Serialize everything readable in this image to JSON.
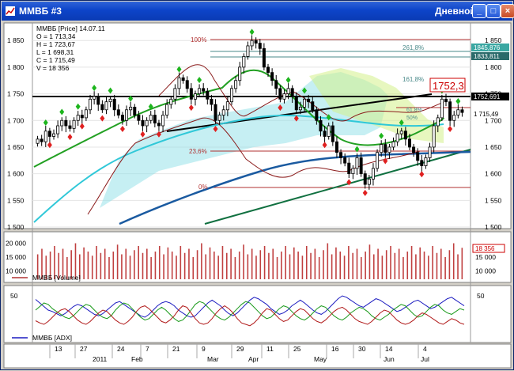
{
  "window": {
    "title": "ММВБ #3",
    "timeframe": "Дневной",
    "controls": [
      "minimize",
      "maximize",
      "close"
    ]
  },
  "info_box": {
    "lines": [
      "ММВБ [Price] 14.07.11",
      "O = 1 713,34",
      "H = 1 723,67",
      "L = 1 698,31",
      "C = 1 715,49",
      "V = 18 356"
    ]
  },
  "fib_labels": [
    "100%",
    "261,8%",
    "161,8%",
    "23,6%",
    "0%",
    "61,8%",
    "50%"
  ],
  "price_callout": "1752,3",
  "right_value_labels": [
    "1845,876",
    "1833,811",
    "1752,691",
    "1 715,49"
  ],
  "volume_right_label": "18 356",
  "volume_legend": "ММВБ [Volume]",
  "adx_legend": "ММВБ [ADX]",
  "date_axis": {
    "day_ticks": [
      "13",
      "27",
      "24",
      "7",
      "21",
      "9",
      "29",
      "11",
      "25",
      "16",
      "30",
      "14",
      "4"
    ],
    "months": [
      "2011",
      "Feb",
      "Mar",
      "Apr",
      "May",
      "Jun",
      "Jul"
    ]
  },
  "chart_data": [
    {
      "type": "candlestick",
      "ylim": [
        1500,
        1880
      ],
      "y_ticks": [
        "1 850",
        "1 800",
        "1 750",
        "1 700",
        "1 650",
        "1 600",
        "1 550",
        "1 500"
      ],
      "close": [
        1665,
        1660,
        1680,
        1670,
        1675,
        1690,
        1700,
        1690,
        1685,
        1700,
        1710,
        1705,
        1720,
        1740,
        1745,
        1730,
        1720,
        1735,
        1740,
        1720,
        1710,
        1700,
        1720,
        1725,
        1710,
        1700,
        1690,
        1700,
        1710,
        1695,
        1690,
        1710,
        1730,
        1740,
        1760,
        1780,
        1775,
        1760,
        1740,
        1750,
        1760,
        1755,
        1740,
        1730,
        1700,
        1710,
        1720,
        1735,
        1760,
        1775,
        1800,
        1820,
        1840,
        1850,
        1845,
        1835,
        1800,
        1790,
        1775,
        1760,
        1740,
        1750,
        1760,
        1745,
        1720,
        1725,
        1740,
        1735,
        1720,
        1700,
        1680,
        1670,
        1690,
        1660,
        1640,
        1630,
        1620,
        1600,
        1610,
        1630,
        1600,
        1580,
        1590,
        1610,
        1640,
        1655,
        1640,
        1650,
        1660,
        1675,
        1680,
        1665,
        1650,
        1640,
        1625,
        1615,
        1630,
        1650,
        1690,
        1705,
        1740,
        1735,
        1700,
        1710,
        1720,
        1715
      ]
    },
    {
      "type": "bar",
      "title": "ММВБ [Volume]",
      "y_ticks": [
        "20 000",
        "15 000",
        "10 000"
      ],
      "ylim": [
        7000,
        23000
      ],
      "values": [
        16000,
        18000,
        15500,
        17000,
        19000,
        16500,
        18000,
        15000,
        17500,
        20000,
        16000,
        18500,
        17000,
        15500,
        19000,
        16500,
        18000,
        15000,
        17000,
        19500,
        16000,
        18000,
        15500,
        17500,
        19000,
        16500,
        18000,
        15000,
        17000,
        19000,
        16000,
        18500,
        17000,
        15500,
        19000,
        16500,
        18000,
        15000,
        17500,
        20000,
        16000,
        18500,
        17000,
        15500,
        19000,
        16500,
        18000,
        15000,
        17000,
        19500,
        16000,
        18000,
        15500,
        17500,
        19000,
        16500,
        18000,
        15000,
        17000,
        19000,
        16000,
        18500,
        17000,
        15500,
        19000,
        16500,
        18000,
        15000,
        17500,
        20000,
        16000,
        18500,
        17000,
        15500,
        19000,
        16500,
        18000,
        15000,
        17000,
        19500,
        16000,
        18000,
        15500,
        17500,
        19000,
        16500,
        18000,
        15000,
        17000,
        19000,
        16000,
        18500,
        17000,
        15500,
        19000,
        16500,
        18000,
        15000,
        17500,
        20000,
        16000,
        18356
      ]
    },
    {
      "type": "line",
      "title": "ММВБ [ADX]",
      "y_ticks": [
        "50"
      ],
      "ylim": [
        0,
        60
      ],
      "series": [
        {
          "color": "#1c1cc0",
          "values": [
            45,
            40,
            35,
            30,
            28,
            25,
            22,
            25,
            30,
            35,
            38,
            36,
            32,
            28,
            24,
            22,
            25,
            30,
            35,
            40,
            42,
            38,
            34,
            30,
            26,
            22,
            20,
            24,
            30,
            36,
            40,
            42,
            40,
            36,
            30,
            26,
            22,
            20,
            22,
            28,
            34,
            40,
            44,
            40,
            36,
            30,
            25,
            22,
            26,
            32,
            38,
            44,
            48,
            46,
            42,
            38,
            32,
            28,
            24,
            26,
            30,
            36,
            40,
            44,
            40,
            35,
            30,
            26,
            24,
            28,
            34,
            40,
            46,
            50,
            48,
            44,
            40,
            36,
            34,
            38,
            42,
            46,
            44,
            40,
            36,
            32,
            28,
            30,
            34,
            38,
            42,
            44,
            40,
            36,
            32,
            34,
            38,
            42,
            46,
            48,
            44,
            40,
            36
          ]
        },
        {
          "color": "#1a9a1a",
          "values": [
            30,
            35,
            40,
            38,
            32,
            28,
            24,
            20,
            18,
            22,
            28,
            34,
            38,
            36,
            30,
            24,
            20,
            18,
            22,
            30,
            36,
            40,
            38,
            32,
            26,
            20,
            16,
            18,
            24,
            30,
            34,
            30,
            24,
            18,
            14,
            16,
            22,
            30,
            38,
            42,
            40,
            34,
            28,
            22,
            18,
            16,
            20,
            26,
            32,
            38,
            42,
            40,
            34,
            28,
            22,
            18,
            20,
            26,
            32,
            36,
            34,
            28,
            22,
            18,
            16,
            20,
            26,
            32,
            36,
            34,
            28,
            22,
            18,
            16,
            20,
            26,
            30,
            34,
            32,
            28,
            22,
            18,
            16,
            20,
            24,
            30,
            34,
            38,
            36,
            30,
            24,
            20,
            22,
            28,
            34,
            38,
            36,
            30,
            26,
            24,
            28,
            32,
            30
          ]
        },
        {
          "color": "#b01818",
          "values": [
            15,
            12,
            10,
            14,
            20,
            26,
            30,
            32,
            28,
            22,
            16,
            12,
            10,
            14,
            20,
            26,
            30,
            28,
            22,
            16,
            12,
            10,
            14,
            20,
            28,
            34,
            36,
            32,
            26,
            20,
            14,
            12,
            16,
            22,
            30,
            36,
            34,
            26,
            18,
            12,
            10,
            12,
            18,
            26,
            32,
            36,
            32,
            26,
            18,
            12,
            10,
            8,
            12,
            18,
            26,
            32,
            30,
            24,
            18,
            14,
            16,
            22,
            28,
            32,
            30,
            24,
            18,
            14,
            12,
            16,
            22,
            28,
            32,
            34,
            30,
            24,
            18,
            14,
            12,
            10,
            14,
            20,
            26,
            30,
            28,
            22,
            16,
            12,
            10,
            12,
            16,
            22,
            26,
            24,
            20,
            16,
            12,
            10,
            14,
            18,
            16,
            12,
            10
          ]
        }
      ]
    }
  ]
}
